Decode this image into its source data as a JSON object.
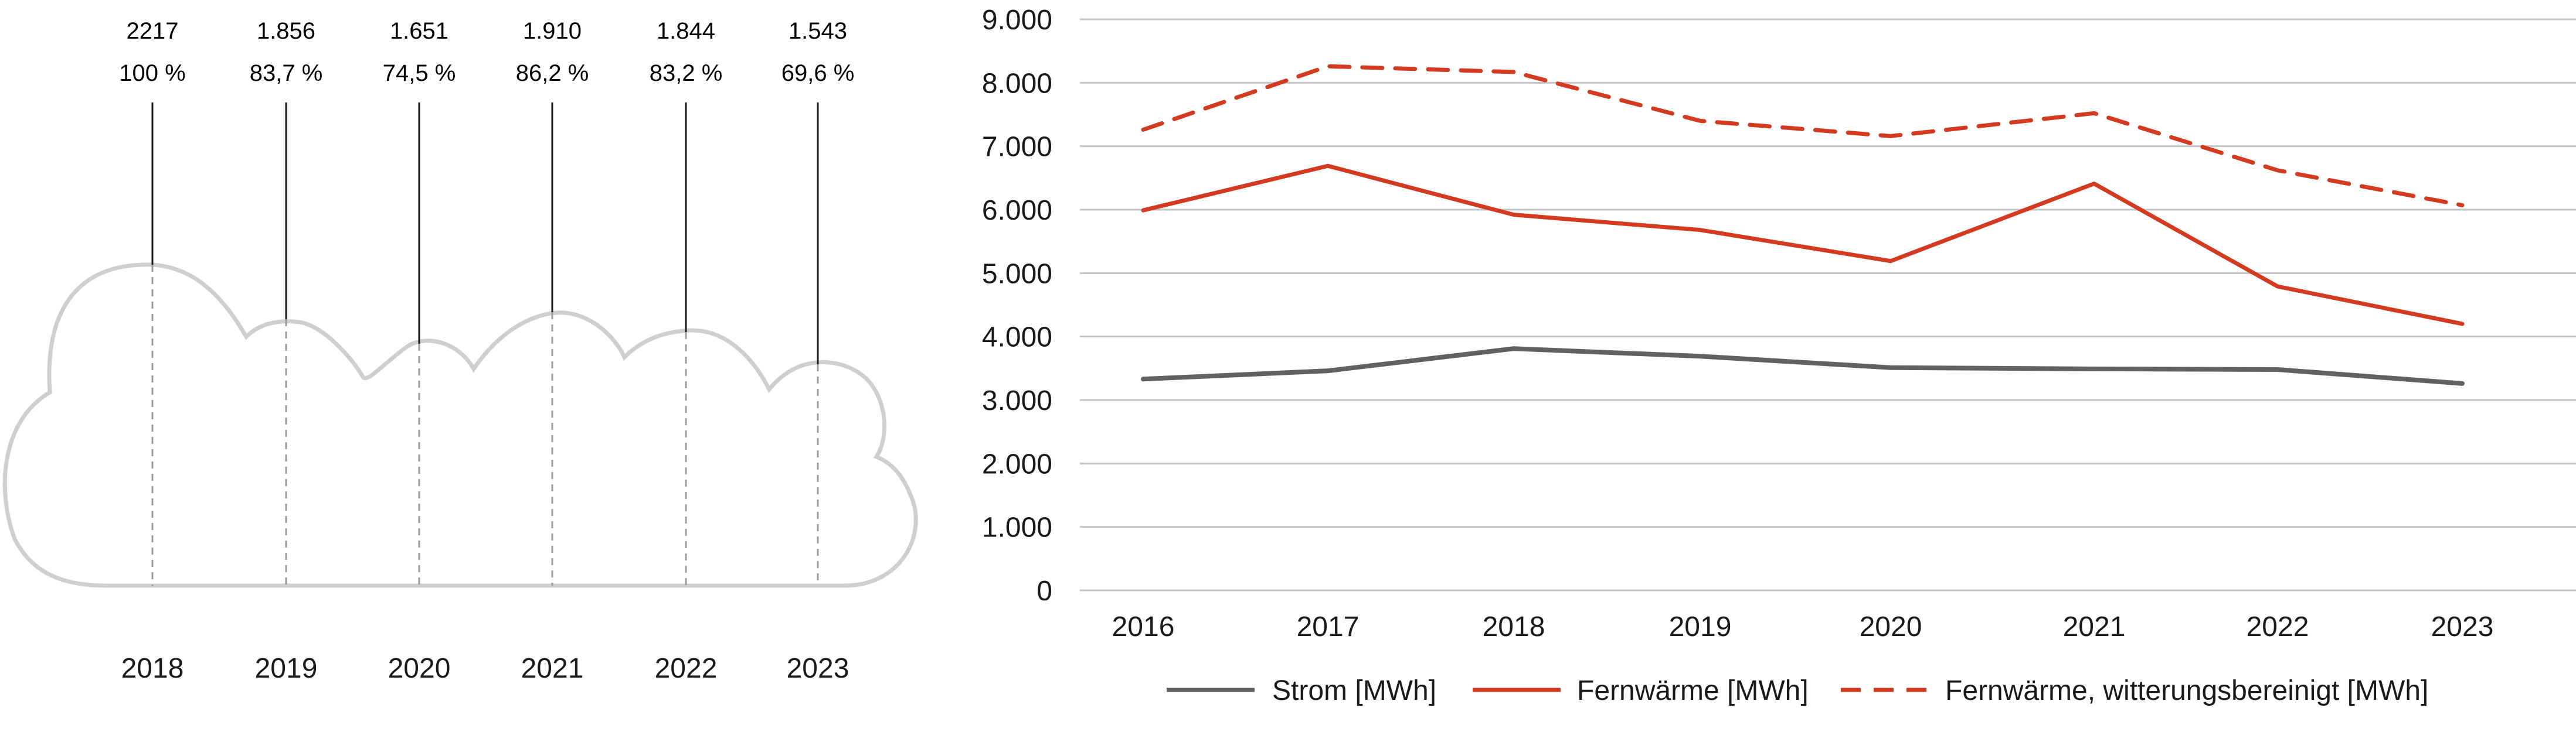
{
  "colors": {
    "strom": "#616161",
    "fernwaerme": "#d33a1f",
    "fernwaerme_witterung": "#d33a1f",
    "cloud_outline": "#cfcfcf",
    "grid": "#c4c4c4",
    "stem": "#1a1a1a"
  },
  "chart_data": [
    {
      "type": "bar",
      "note_style": "cloud stem chart",
      "categories": [
        "2018",
        "2019",
        "2020",
        "2021",
        "2022",
        "2023"
      ],
      "value_labels": [
        "2217",
        "1.856",
        "1.651",
        "1.910",
        "1.844",
        "1.543"
      ],
      "percent_labels": [
        "100 %",
        "83,7 %",
        "74,5 %",
        "86,2 %",
        "83,2 %",
        "69,6 %"
      ],
      "values": [
        2217,
        1856,
        1651,
        1910,
        1844,
        1543
      ],
      "percents": [
        100,
        83.7,
        74.5,
        86.2,
        83.2,
        69.6
      ],
      "ylim": [
        0,
        2217
      ]
    },
    {
      "type": "line",
      "categories": [
        "2016",
        "2017",
        "2018",
        "2019",
        "2020",
        "2021",
        "2022",
        "2023"
      ],
      "y_ticks": [
        "0",
        "1.000",
        "2.000",
        "3.000",
        "4.000",
        "5.000",
        "6.000",
        "7.000",
        "8.000",
        "9.000"
      ],
      "ylim": [
        0,
        9000
      ],
      "grid": true,
      "legend_position": "bottom",
      "series": [
        {
          "name": "Strom [MWh]",
          "style": "solid",
          "color_key": "strom",
          "values": [
            3330,
            3460,
            3810,
            3690,
            3510,
            3490,
            3480,
            3260
          ]
        },
        {
          "name": "Fernwärme [MWh]",
          "style": "solid",
          "color_key": "fernwaerme",
          "values": [
            5990,
            6690,
            5920,
            5680,
            5190,
            6410,
            4790,
            4200
          ]
        },
        {
          "name": "Fernwärme, witterungsbereinigt [MWh]",
          "style": "dashed",
          "color_key": "fernwaerme_witterung",
          "values": [
            7260,
            8260,
            8170,
            7400,
            7160,
            7520,
            6620,
            6070
          ]
        }
      ]
    }
  ]
}
